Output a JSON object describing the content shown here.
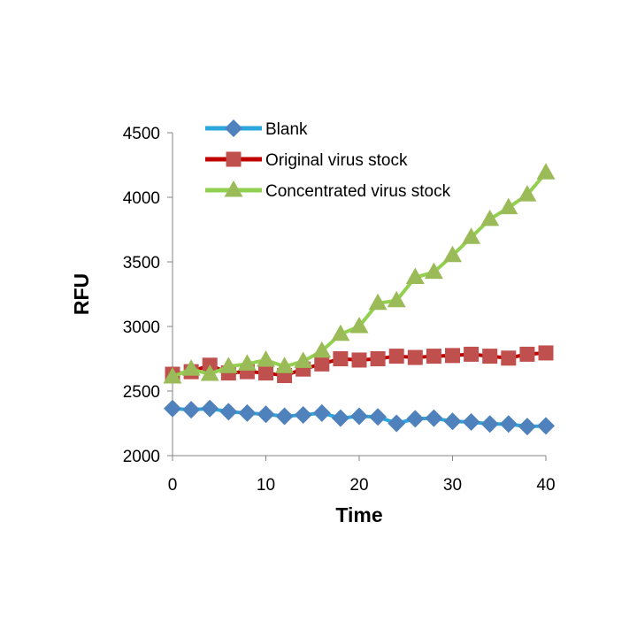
{
  "chart_data": {
    "type": "line",
    "title": "",
    "xlabel": "Time",
    "ylabel": "RFU",
    "xlim": [
      0,
      40
    ],
    "ylim": [
      2000,
      4500
    ],
    "xticks": [
      0,
      10,
      20,
      30,
      40
    ],
    "yticks": [
      2000,
      2500,
      3000,
      3500,
      4000,
      4500
    ],
    "grid": false,
    "legend_position": "top-left",
    "x": [
      0,
      2,
      4,
      6,
      8,
      10,
      12,
      14,
      16,
      18,
      20,
      22,
      24,
      26,
      28,
      30,
      32,
      34,
      36,
      38,
      40
    ],
    "series": [
      {
        "name": "Blank",
        "color": "#4f81bd",
        "line_color": "#2aa7dc",
        "marker": "diamond",
        "values": [
          2365,
          2355,
          2365,
          2340,
          2330,
          2320,
          2305,
          2315,
          2330,
          2290,
          2305,
          2300,
          2250,
          2285,
          2290,
          2265,
          2260,
          2245,
          2245,
          2225,
          2230
        ]
      },
      {
        "name": "Original virus stock",
        "color": "#c0504d",
        "line_color": "#c00000",
        "marker": "square",
        "values": [
          2630,
          2650,
          2700,
          2640,
          2650,
          2640,
          2620,
          2670,
          2710,
          2750,
          2740,
          2750,
          2770,
          2760,
          2770,
          2775,
          2785,
          2770,
          2755,
          2785,
          2795
        ]
      },
      {
        "name": "Concentrated virus stock",
        "color": "#9bbb59",
        "line_color": "#92d050",
        "marker": "triangle",
        "values": [
          2610,
          2670,
          2630,
          2690,
          2710,
          2740,
          2690,
          2730,
          2810,
          2940,
          3000,
          3180,
          3200,
          3380,
          3420,
          3550,
          3690,
          3830,
          3920,
          4020,
          4190
        ]
      }
    ]
  }
}
